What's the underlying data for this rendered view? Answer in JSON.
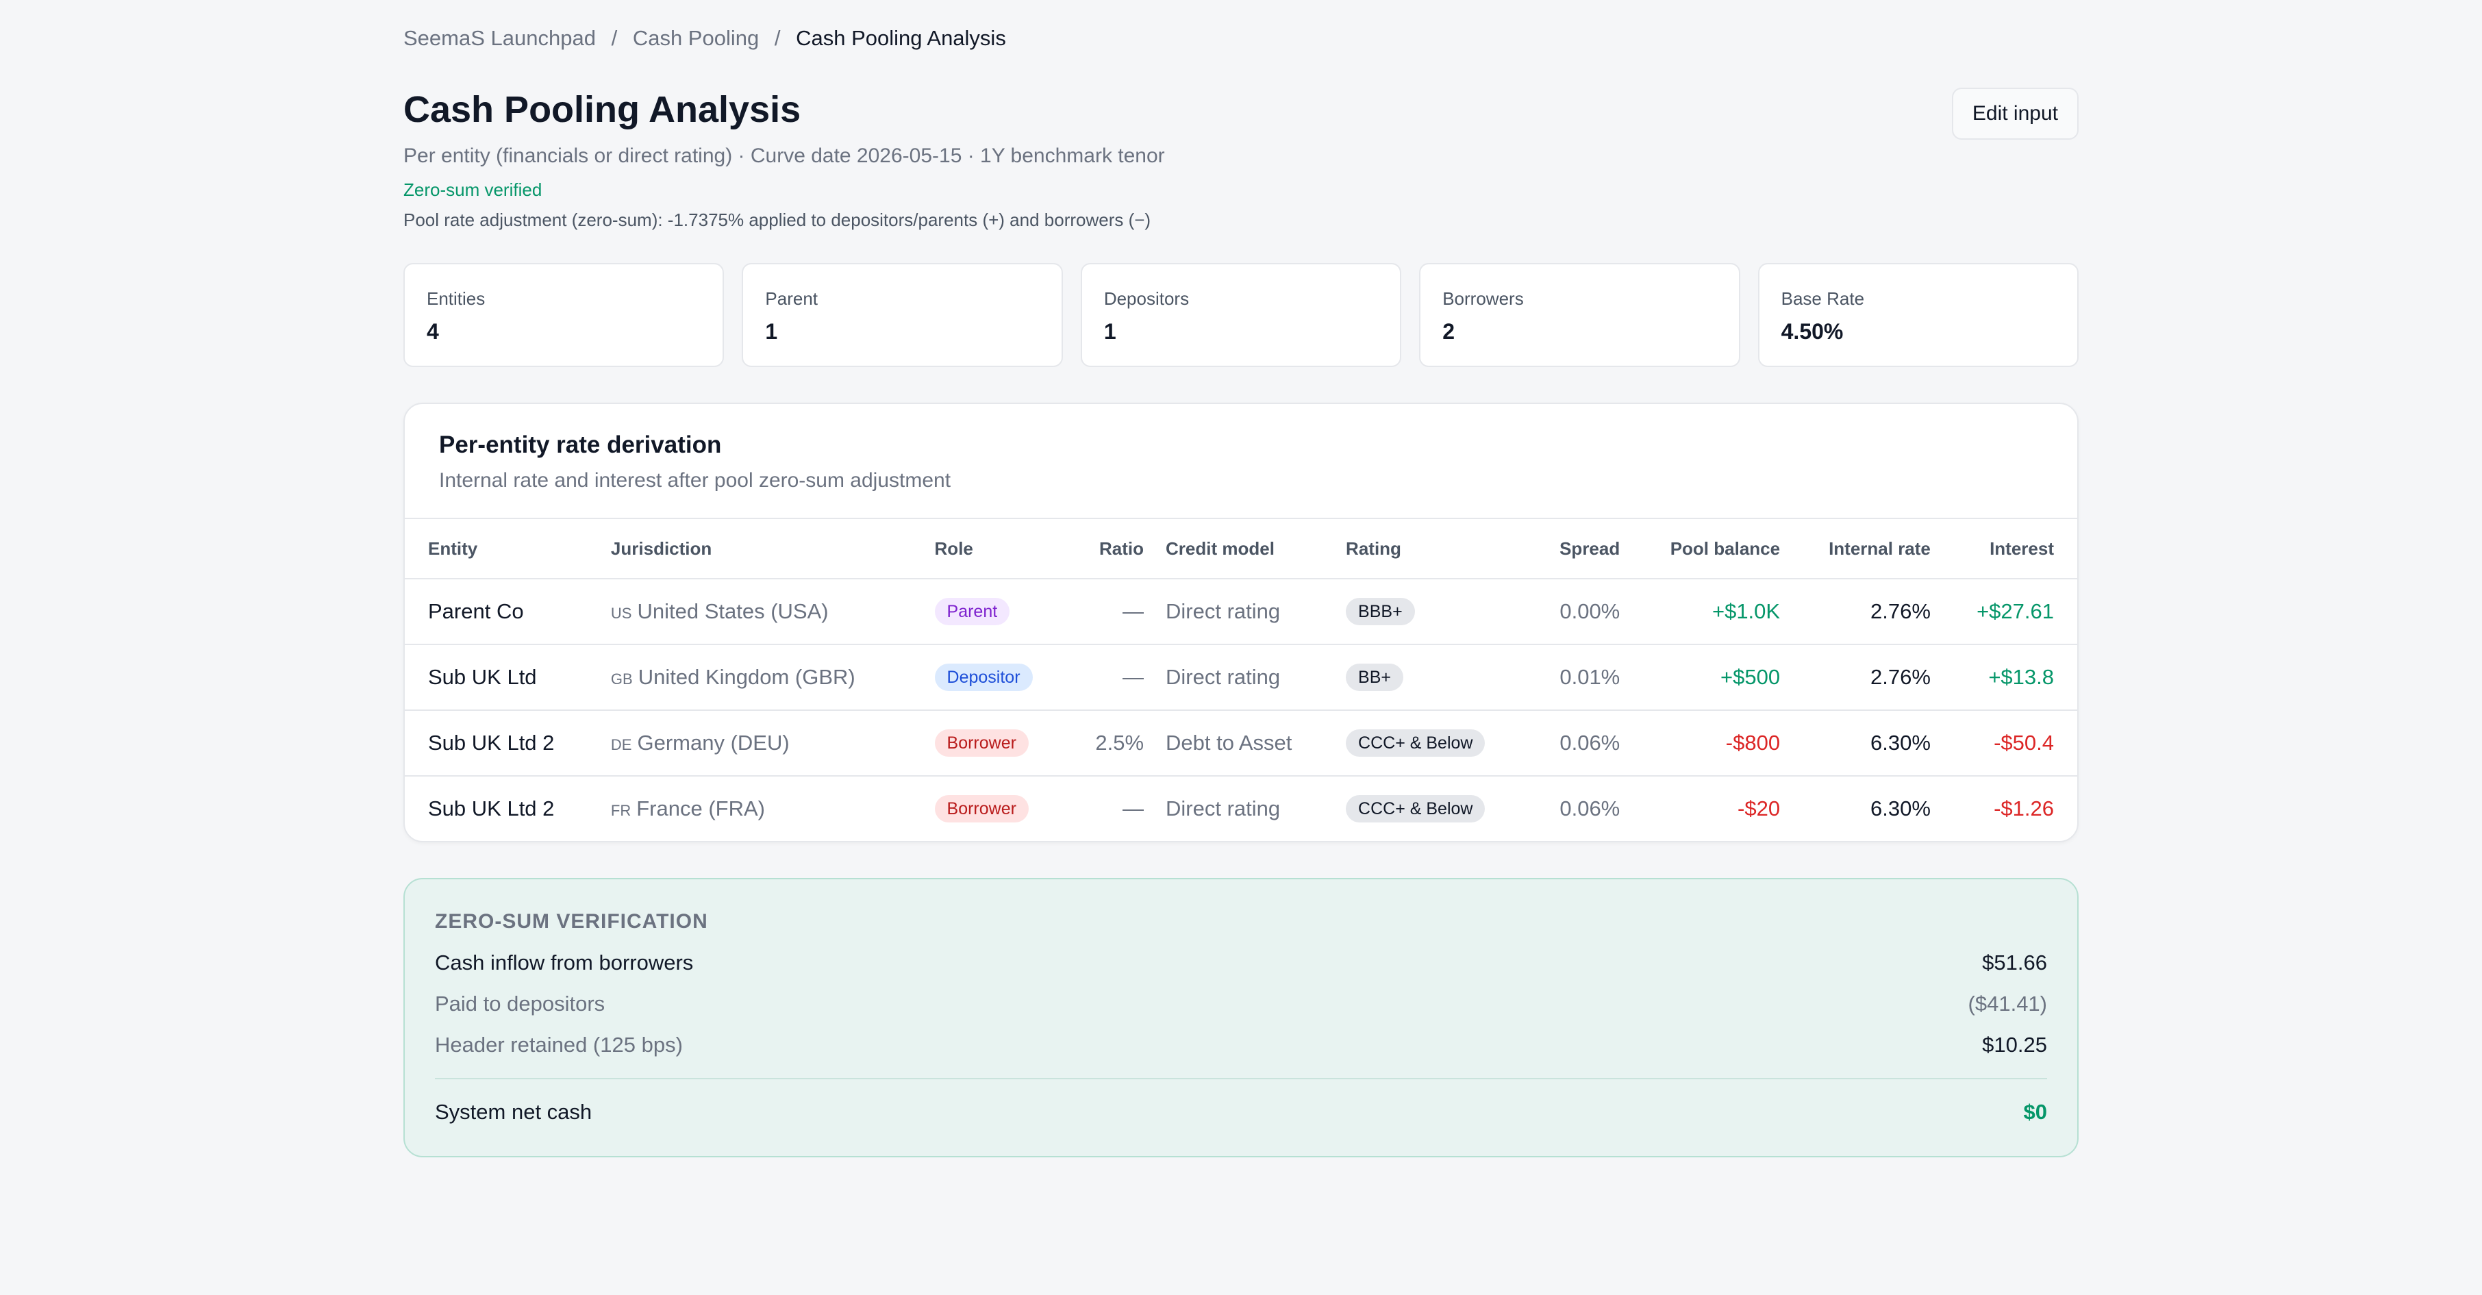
{
  "breadcrumb": {
    "items": [
      "SeemaS Launchpad",
      "Cash Pooling"
    ],
    "separator": "/",
    "current": "Cash Pooling Analysis"
  },
  "header": {
    "title": "Cash Pooling Analysis",
    "subtitle": "Per entity (financials or direct rating) · Curve date 2026-05-15 · 1Y benchmark tenor",
    "verified": "Zero-sum verified",
    "adjustment": "Pool rate adjustment (zero-sum): -1.7375% applied to depositors/parents (+) and borrowers (−)",
    "edit_button": "Edit input"
  },
  "stats": [
    {
      "label": "Entities",
      "value": "4"
    },
    {
      "label": "Parent",
      "value": "1"
    },
    {
      "label": "Depositors",
      "value": "1"
    },
    {
      "label": "Borrowers",
      "value": "2"
    },
    {
      "label": "Base Rate",
      "value": "4.50%"
    }
  ],
  "derivation": {
    "title": "Per-entity rate derivation",
    "subtitle": "Internal rate and interest after pool zero-sum adjustment",
    "columns": [
      "Entity",
      "Jurisdiction",
      "Role",
      "Ratio",
      "Credit model",
      "Rating",
      "Spread",
      "Pool balance",
      "Internal rate",
      "Interest"
    ],
    "rows": [
      {
        "entity": "Parent Co",
        "cc": "US",
        "jurisdiction": "United States (USA)",
        "role": "Parent",
        "ratio": "—",
        "credit_model": "Direct rating",
        "rating": "BBB+",
        "spread": "0.00%",
        "balance": "+$1.0K",
        "internal_rate": "2.76%",
        "interest": "+$27.61"
      },
      {
        "entity": "Sub UK Ltd",
        "cc": "GB",
        "jurisdiction": "United Kingdom (GBR)",
        "role": "Depositor",
        "ratio": "—",
        "credit_model": "Direct rating",
        "rating": "BB+",
        "spread": "0.01%",
        "balance": "+$500",
        "internal_rate": "2.76%",
        "interest": "+$13.8"
      },
      {
        "entity": "Sub UK Ltd 2",
        "cc": "DE",
        "jurisdiction": "Germany (DEU)",
        "role": "Borrower",
        "ratio": "2.5%",
        "credit_model": "Debt to Asset",
        "rating": "CCC+ & Below",
        "spread": "0.06%",
        "balance": "-$800",
        "internal_rate": "6.30%",
        "interest": "-$50.4"
      },
      {
        "entity": "Sub UK Ltd 2",
        "cc": "FR",
        "jurisdiction": "France (FRA)",
        "role": "Borrower",
        "ratio": "—",
        "credit_model": "Direct rating",
        "rating": "CCC+ & Below",
        "spread": "0.06%",
        "balance": "-$20",
        "internal_rate": "6.30%",
        "interest": "-$1.26"
      }
    ]
  },
  "verification": {
    "title": "ZERO-SUM VERIFICATION",
    "rows": [
      {
        "label": "Cash inflow from borrowers",
        "value": "$51.66"
      },
      {
        "label": "Paid to depositors",
        "value": "($41.41)"
      },
      {
        "label": "Header retained (125 bps)",
        "value": "$10.25"
      }
    ],
    "total_label": "System net cash",
    "total_value": "$0"
  },
  "colors": {
    "positive": "#059669",
    "negative": "#dc2626",
    "parent_pill": "#f3e8ff",
    "depositor_pill": "#dbeafe",
    "borrower_pill": "#fee2e2"
  }
}
